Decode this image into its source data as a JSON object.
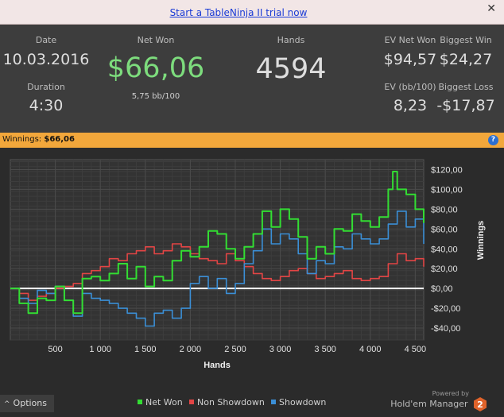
{
  "trial": {
    "link_text": "Start a TableNinja II trial now",
    "close": "✕"
  },
  "stats": {
    "date_label": "Date",
    "date_value": "10.03.2016",
    "duration_label": "Duration",
    "duration_value": "4:30",
    "net_won_label": "Net Won",
    "net_won_value": "$66,06",
    "net_won_sub": "5,75 bb/100",
    "hands_label": "Hands",
    "hands_value": "4594",
    "ev_net_won_label": "EV Net Won",
    "ev_net_won_value": "$94,57",
    "biggest_win_label": "Biggest Win",
    "biggest_win_value": "$24,27",
    "ev_bb_label": "EV (bb/100)",
    "ev_bb_value": "8,23",
    "biggest_loss_label": "Biggest Loss",
    "biggest_loss_value": "-$17,87"
  },
  "banner": {
    "label": "Winnings:",
    "value": "$66,06",
    "help": "?"
  },
  "colors": {
    "net_won": "#33dd33",
    "non_showdown": "#e34545",
    "showdown": "#3b8fd6",
    "accent": "#f2a73b",
    "net_won_text": "#7ddc7d"
  },
  "chart_data": {
    "type": "line",
    "xlabel": "Hands",
    "ylabel": "Winnings",
    "xlim": [
      0,
      4594
    ],
    "ylim": [
      -52,
      130
    ],
    "xticks": [
      500,
      1000,
      1500,
      2000,
      2500,
      3000,
      3500,
      4000,
      4500
    ],
    "xtick_labels": [
      "500",
      "1 000",
      "1 500",
      "2 000",
      "2 500",
      "3 000",
      "3 500",
      "4 000",
      "4 500"
    ],
    "yticks": [
      -40,
      -20,
      0,
      20,
      40,
      60,
      80,
      100,
      120
    ],
    "ytick_labels": [
      "-$40,00",
      "-$20,00",
      "$0,00",
      "$20,00",
      "$40,00",
      "$60,00",
      "$80,00",
      "$100,00",
      "$120,00"
    ],
    "grid": true,
    "legend": "bottom",
    "series": [
      {
        "name": "Net Won",
        "color": "#33dd33",
        "x": [
          0,
          100,
          200,
          300,
          400,
          500,
          600,
          700,
          800,
          900,
          1000,
          1100,
          1200,
          1300,
          1400,
          1500,
          1600,
          1700,
          1800,
          1900,
          2000,
          2100,
          2200,
          2300,
          2400,
          2500,
          2600,
          2700,
          2800,
          2900,
          3000,
          3100,
          3200,
          3300,
          3400,
          3500,
          3600,
          3700,
          3800,
          3900,
          4000,
          4100,
          4200,
          4250,
          4300,
          4400,
          4500,
          4594
        ],
        "y": [
          0,
          -15,
          -25,
          -10,
          -12,
          2,
          -12,
          -25,
          10,
          12,
          8,
          15,
          25,
          10,
          22,
          2,
          12,
          8,
          28,
          38,
          32,
          42,
          58,
          55,
          40,
          30,
          42,
          55,
          78,
          62,
          80,
          70,
          52,
          30,
          42,
          35,
          60,
          58,
          75,
          68,
          62,
          72,
          100,
          118,
          100,
          95,
          80,
          66
        ]
      },
      {
        "name": "Non Showdown",
        "color": "#e34545",
        "x": [
          0,
          100,
          200,
          300,
          400,
          500,
          600,
          700,
          800,
          900,
          1000,
          1100,
          1200,
          1300,
          1400,
          1500,
          1600,
          1700,
          1800,
          1900,
          2000,
          2100,
          2200,
          2300,
          2400,
          2500,
          2600,
          2700,
          2800,
          2900,
          3000,
          3100,
          3200,
          3300,
          3400,
          3500,
          3600,
          3700,
          3800,
          3900,
          4000,
          4100,
          4200,
          4300,
          4400,
          4500,
          4594
        ],
        "y": [
          0,
          -5,
          -12,
          -8,
          -5,
          0,
          2,
          5,
          15,
          18,
          22,
          30,
          28,
          35,
          38,
          42,
          35,
          38,
          45,
          42,
          35,
          30,
          28,
          25,
          35,
          28,
          22,
          15,
          10,
          8,
          12,
          18,
          20,
          15,
          10,
          12,
          15,
          18,
          10,
          8,
          10,
          12,
          25,
          35,
          28,
          30,
          22
        ]
      },
      {
        "name": "Showdown",
        "color": "#3b8fd6",
        "x": [
          0,
          100,
          200,
          300,
          400,
          500,
          600,
          700,
          800,
          900,
          1000,
          1100,
          1200,
          1300,
          1400,
          1500,
          1600,
          1700,
          1800,
          1900,
          2000,
          2100,
          2200,
          2300,
          2400,
          2500,
          2600,
          2700,
          2800,
          2900,
          3000,
          3100,
          3200,
          3300,
          3400,
          3500,
          3600,
          3700,
          3800,
          3900,
          4000,
          4100,
          4200,
          4300,
          4400,
          4500,
          4594
        ],
        "y": [
          0,
          -10,
          -15,
          -2,
          -5,
          2,
          -12,
          -28,
          -5,
          -10,
          -12,
          -15,
          -20,
          -25,
          -30,
          -38,
          -25,
          -22,
          -30,
          -20,
          5,
          12,
          0,
          10,
          -5,
          5,
          25,
          38,
          60,
          45,
          55,
          50,
          35,
          15,
          28,
          25,
          42,
          40,
          55,
          50,
          45,
          50,
          65,
          78,
          62,
          70,
          45
        ]
      }
    ]
  },
  "footer": {
    "options_label": "Options",
    "powered_by": "Powered by",
    "brand": "Hold'em Manager",
    "brand_number": "2"
  }
}
